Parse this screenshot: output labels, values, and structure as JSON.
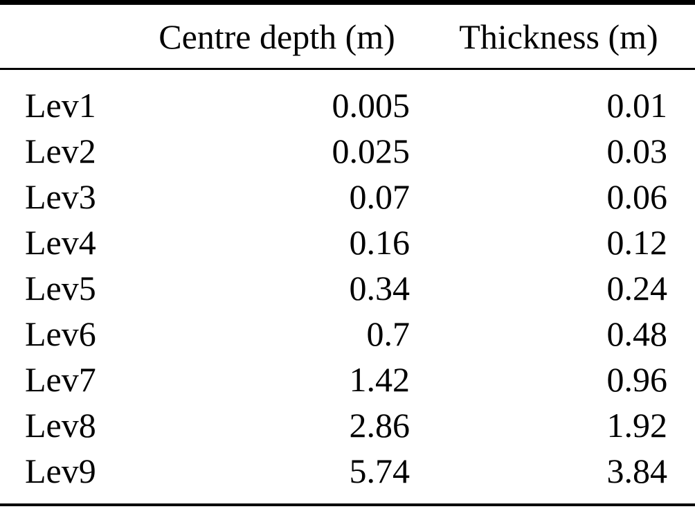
{
  "table": {
    "columns": {
      "level": "",
      "centre_depth": "Centre depth (m)",
      "thickness": "Thickness (m)"
    },
    "rows": [
      {
        "label": "Lev1",
        "centre_depth": "0.005",
        "thickness": "0.01"
      },
      {
        "label": "Lev2",
        "centre_depth": "0.025",
        "thickness": "0.03"
      },
      {
        "label": "Lev3",
        "centre_depth": "0.07",
        "thickness": "0.06"
      },
      {
        "label": "Lev4",
        "centre_depth": "0.16",
        "thickness": "0.12"
      },
      {
        "label": "Lev5",
        "centre_depth": "0.34",
        "thickness": "0.24"
      },
      {
        "label": "Lev6",
        "centre_depth": "0.7",
        "thickness": "0.48"
      },
      {
        "label": "Lev7",
        "centre_depth": "1.42",
        "thickness": "0.96"
      },
      {
        "label": "Lev8",
        "centre_depth": "2.86",
        "thickness": "1.92"
      },
      {
        "label": "Lev9",
        "centre_depth": "5.74",
        "thickness": "3.84"
      }
    ]
  },
  "chart_data": {
    "type": "table",
    "title": "",
    "columns": [
      "",
      "Centre depth (m)",
      "Thickness (m)"
    ],
    "categories": [
      "Lev1",
      "Lev2",
      "Lev3",
      "Lev4",
      "Lev5",
      "Lev6",
      "Lev7",
      "Lev8",
      "Lev9"
    ],
    "series": [
      {
        "name": "Centre depth (m)",
        "values": [
          0.005,
          0.025,
          0.07,
          0.16,
          0.34,
          0.7,
          1.42,
          2.86,
          5.74
        ]
      },
      {
        "name": "Thickness (m)",
        "values": [
          0.01,
          0.03,
          0.06,
          0.12,
          0.24,
          0.48,
          0.96,
          1.92,
          3.84
        ]
      }
    ],
    "colors": {
      "text": "#000000",
      "background": "#ffffff",
      "rule": "#000000"
    }
  }
}
